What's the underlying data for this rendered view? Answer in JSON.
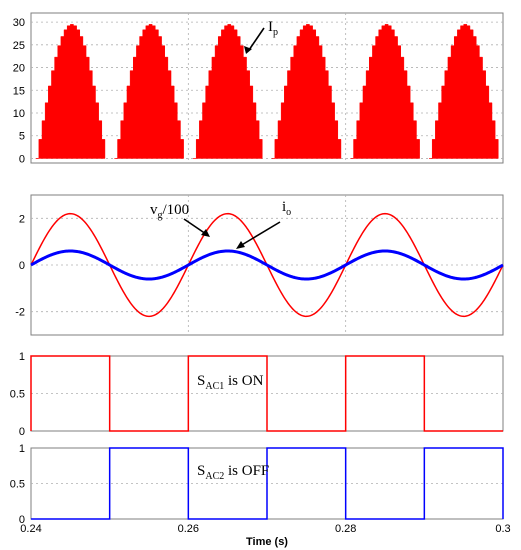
{
  "colors": {
    "red": "#ff0000",
    "blue": "#0000ff"
  },
  "chart_data": [
    {
      "type": "area",
      "name_label": "I",
      "name_sub": "p",
      "xlim": [
        0.24,
        0.3
      ],
      "ylim": [
        -1,
        32
      ],
      "yticks": [
        "0",
        "5",
        "10",
        "15",
        "20",
        "25",
        "30"
      ],
      "ytick_values": [
        0,
        5,
        10,
        15,
        20,
        25,
        30
      ],
      "peak": 29.5,
      "period": 0.01,
      "color": "#ff0000"
    },
    {
      "type": "line",
      "xlim": [
        0.24,
        0.3
      ],
      "ylim": [
        -3,
        3
      ],
      "yticks": [
        "-2",
        "0",
        "2"
      ],
      "ytick_values": [
        -2,
        0,
        2
      ],
      "series": [
        {
          "label": "v",
          "sub": "g",
          "suffix": "/100",
          "amplitude": 2.2,
          "frequency": 50,
          "color": "#ff0000"
        },
        {
          "label": "i",
          "sub": "o",
          "suffix": "",
          "amplitude": 0.6,
          "frequency": 50,
          "color": "#0000ff"
        }
      ]
    },
    {
      "type": "line",
      "xlim": [
        0.24,
        0.3
      ],
      "ylim": [
        0,
        1
      ],
      "yticks": [
        "0",
        "0.5",
        "1"
      ],
      "ytick_values": [
        0,
        0.5,
        1
      ],
      "label_main": "S",
      "label_sub": "AC1",
      "label_suffix": " is ON",
      "high_intervals": [
        [
          0.24,
          0.25
        ],
        [
          0.26,
          0.27
        ],
        [
          0.28,
          0.29
        ]
      ],
      "color": "#ff0000"
    },
    {
      "type": "line",
      "xlim": [
        0.24,
        0.3
      ],
      "ylim": [
        0,
        1
      ],
      "yticks": [
        "0",
        "0.5",
        "1"
      ],
      "ytick_values": [
        0,
        0.5,
        1
      ],
      "label_main": "S",
      "label_sub": "AC2",
      "label_suffix": " is OFF",
      "high_intervals": [
        [
          0.25,
          0.26
        ],
        [
          0.27,
          0.28
        ],
        [
          0.29,
          0.3
        ]
      ],
      "color": "#0000ff"
    }
  ],
  "xaxis": {
    "ticks": [
      "0.24",
      "0.26",
      "0.28",
      "0.3"
    ],
    "tick_values": [
      0.24,
      0.26,
      0.28,
      0.3
    ],
    "label": "Time (s)"
  }
}
